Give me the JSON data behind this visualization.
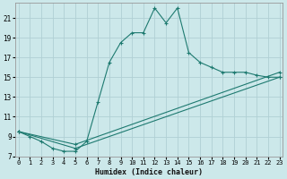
{
  "xlabel": "Humidex (Indice chaleur)",
  "bg_color": "#cce8ea",
  "grid_color": "#b0d0d4",
  "line_color": "#1e7a70",
  "x_ticks": [
    0,
    1,
    2,
    3,
    4,
    5,
    6,
    7,
    8,
    9,
    10,
    11,
    12,
    13,
    14,
    15,
    16,
    17,
    18,
    19,
    20,
    21,
    22,
    23
  ],
  "y_ticks": [
    7,
    9,
    11,
    13,
    15,
    17,
    19,
    21
  ],
  "xlim": [
    -0.3,
    23.3
  ],
  "ylim": [
    7,
    22.5
  ],
  "lines": [
    {
      "x": [
        0,
        1,
        2,
        3,
        4,
        5,
        6,
        7,
        8,
        9,
        10,
        11,
        12,
        13,
        14,
        15,
        16,
        17,
        18,
        19,
        20,
        21,
        22,
        23
      ],
      "y": [
        9.5,
        9.0,
        8.5,
        7.8,
        7.5,
        7.5,
        8.5,
        12.5,
        16.5,
        18.5,
        19.5,
        19.5,
        22.0,
        20.5,
        22.0,
        17.5,
        16.5,
        16.0,
        15.5,
        15.5,
        15.5,
        15.2,
        15.0,
        15.0
      ]
    },
    {
      "x": [
        0,
        5,
        23
      ],
      "y": [
        9.5,
        7.8,
        15.0
      ]
    },
    {
      "x": [
        0,
        5,
        23
      ],
      "y": [
        9.5,
        8.2,
        15.5
      ]
    }
  ]
}
